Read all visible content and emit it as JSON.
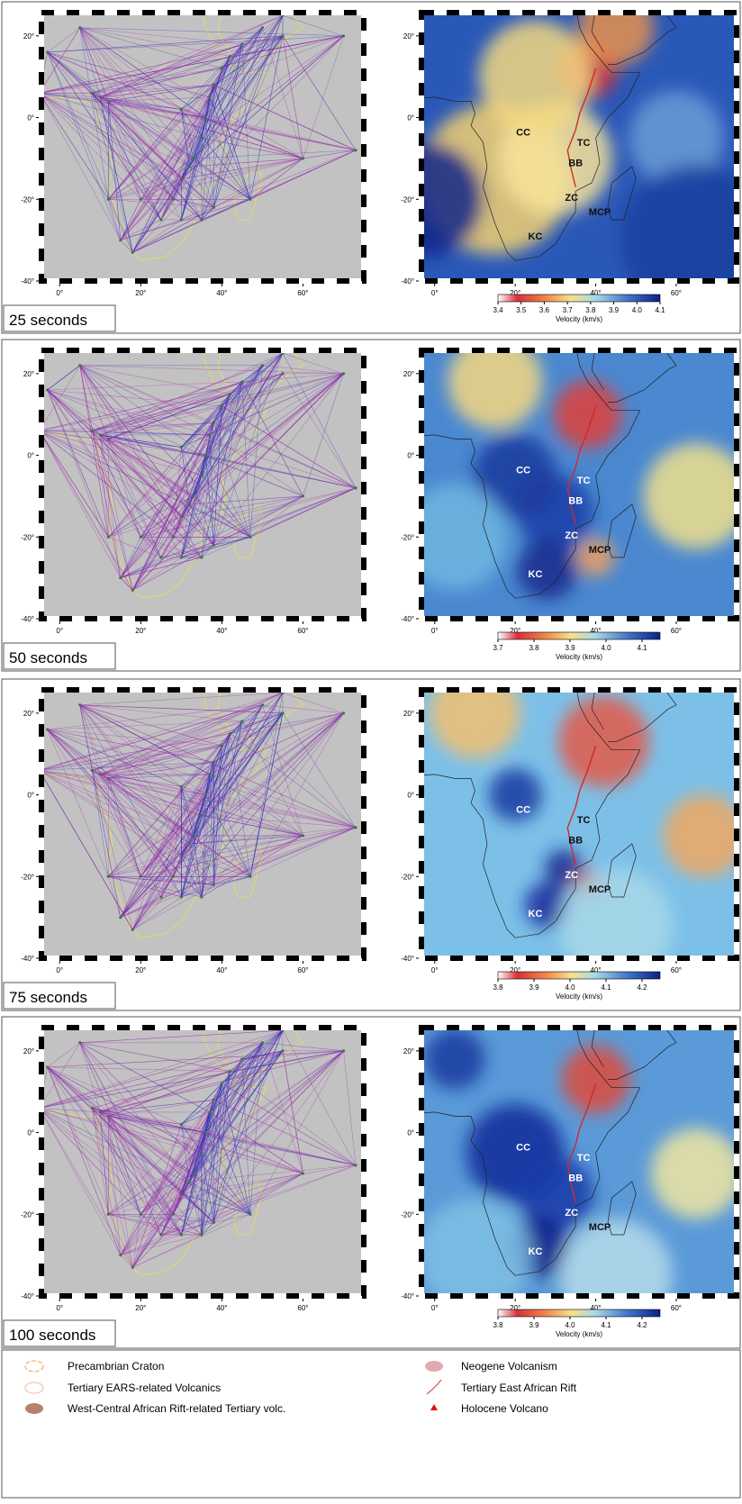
{
  "panels": [
    {
      "period_label": "25 seconds",
      "colorbar": {
        "label": "Velocity (km/s)",
        "range": [
          3.4,
          4.1
        ],
        "ticks": [
          3.4,
          3.5,
          3.6,
          3.7,
          3.8,
          3.9,
          {
            "value": 4,
            "label": "4.0"
          },
          4.1
        ]
      }
    },
    {
      "period_label": "50 seconds",
      "colorbar": {
        "label": "Velocity (km/s)",
        "range": [
          3.7,
          4.15
        ],
        "ticks": [
          3.7,
          3.8,
          3.9,
          {
            "value": 4,
            "label": "4.0"
          },
          4.1
        ]
      }
    },
    {
      "period_label": "75 seconds",
      "colorbar": {
        "label": "Velocity (km/s)",
        "range": [
          3.8,
          4.25
        ],
        "ticks": [
          3.8,
          3.9,
          {
            "value": 4,
            "label": "4.0"
          },
          4.1,
          4.2
        ]
      }
    },
    {
      "period_label": "100 seconds",
      "colorbar": {
        "label": "Velocity (km/s)",
        "range": [
          3.8,
          4.25
        ],
        "ticks": [
          3.8,
          3.9,
          {
            "value": 4,
            "label": "4.0"
          },
          4.1,
          4.2
        ]
      }
    }
  ],
  "map_axes": {
    "lat_ticks": [
      {
        "value": 20,
        "label": "20°"
      },
      {
        "value": 0,
        "label": "0°"
      },
      {
        "value": -20,
        "label": "-20°"
      },
      {
        "value": -40,
        "label": "-40°"
      }
    ],
    "lon_ticks": [
      {
        "value": 0,
        "label": "0°"
      },
      {
        "value": 20,
        "label": "20°"
      },
      {
        "value": 40,
        "label": "40°"
      },
      {
        "value": 60,
        "label": "60°"
      }
    ]
  },
  "region_labels": [
    "CC",
    "TC",
    "BB",
    "ZC",
    "MCP",
    "KC"
  ],
  "legend": [
    "Precambrian Craton",
    "Tertiary EARS-related Volcanics",
    "West-Central African Rift-related Tertiary volc.",
    "Neogene Volcanism",
    "Tertiary East African Rift",
    "Holocene Volcano"
  ]
}
